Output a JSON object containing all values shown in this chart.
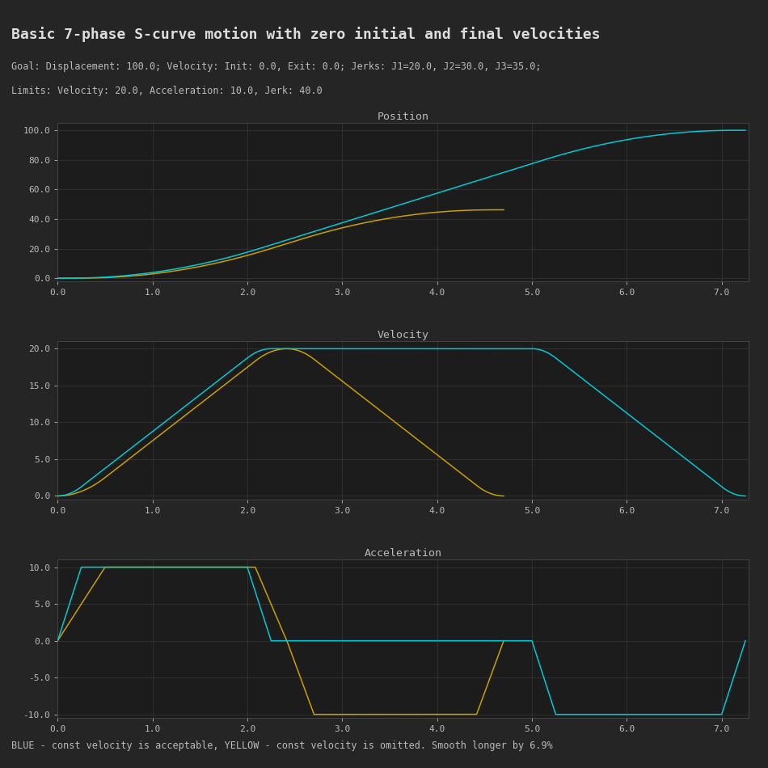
{
  "title": "Basic 7-phase S-curve motion with zero initial and final velocities",
  "subtitle1": "Goal: Displacement: 100.0; Velocity: Init: 0.0, Exit: 0.0; Jerks: J1=20.0, J2=30.0, J3=35.0;",
  "subtitle2": "Limits: Velocity: 20.0, Acceleration: 10.0, Jerk: 40.0",
  "footer": "BLUE - const velocity is acceptable, YELLOW - const velocity is omitted. Smooth longer by 6.9%",
  "bg_color": "#252525",
  "plot_bg_color": "#1c1c1c",
  "grid_color": "#383838",
  "text_color": "#bbbbbb",
  "title_color": "#dddddd",
  "cyan_color": "#00c8d4",
  "yellow_color": "#c8a000",
  "subplot_titles": [
    "Position",
    "Velocity",
    "Acceleration"
  ],
  "v_max": 20.0,
  "a_max": 10.0,
  "j_max": 40.0,
  "displacement": 100.0,
  "v_init": 0.0,
  "v_exit": 0.0,
  "j1": 20.0,
  "j2": 30.0,
  "j3": 35.0
}
